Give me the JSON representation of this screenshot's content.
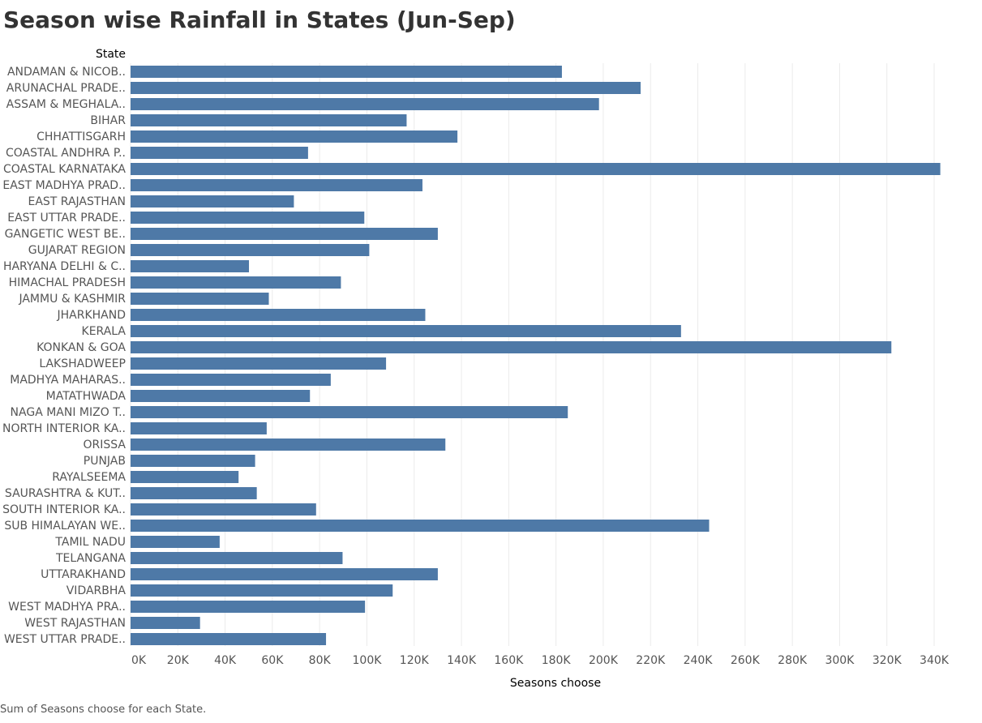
{
  "title": "Season wise Rainfall in States (Jun-Sep)",
  "footer": "Sum of Seasons choose for each State.",
  "colors": {
    "bar": "#4e79a7",
    "grid": "#ebebeb",
    "label": "#555555",
    "header": "#333333"
  },
  "chart_data": {
    "type": "bar",
    "orientation": "horizontal",
    "y_header": "State",
    "xlabel": "Seasons choose",
    "xlim": [
      0,
      350000
    ],
    "x_ticks": [
      0,
      20000,
      40000,
      60000,
      80000,
      100000,
      120000,
      140000,
      160000,
      180000,
      200000,
      220000,
      240000,
      260000,
      280000,
      300000,
      320000,
      340000
    ],
    "x_tick_labels": [
      "0K",
      "20K",
      "40K",
      "60K",
      "80K",
      "100K",
      "120K",
      "140K",
      "160K",
      "180K",
      "200K",
      "220K",
      "240K",
      "260K",
      "280K",
      "300K",
      "320K",
      "340K"
    ],
    "grid": true,
    "categories": [
      "ANDAMAN & NICOB..",
      "ARUNACHAL PRADE..",
      "ASSAM & MEGHALA..",
      "BIHAR",
      "CHHATTISGARH",
      "COASTAL ANDHRA P..",
      "COASTAL KARNATAKA",
      "EAST MADHYA PRAD..",
      "EAST RAJASTHAN",
      "EAST UTTAR PRADE..",
      "GANGETIC WEST BE..",
      "GUJARAT REGION",
      "HARYANA DELHI & C..",
      "HIMACHAL PRADESH",
      "JAMMU & KASHMIR",
      "JHARKHAND",
      "KERALA",
      "KONKAN & GOA",
      "LAKSHADWEEP",
      "MADHYA MAHARAS..",
      "MATATHWADA",
      "NAGA MANI MIZO T..",
      "NORTH INTERIOR KA..",
      "ORISSA",
      "PUNJAB",
      "RAYALSEEMA",
      "SAURASHTRA & KUT..",
      "SOUTH INTERIOR KA..",
      "SUB HIMALAYAN WE..",
      "TAMIL NADU",
      "TELANGANA",
      "UTTARAKHAND",
      "VIDARBHA",
      "WEST MADHYA PRA..",
      "WEST RAJASTHAN",
      "WEST UTTAR PRADE.."
    ],
    "values": [
      182500,
      215800,
      198200,
      116800,
      138300,
      75100,
      342600,
      123500,
      69100,
      98900,
      130000,
      101000,
      50100,
      89000,
      58500,
      124700,
      232900,
      321900,
      108100,
      84700,
      75900,
      185000,
      57600,
      133200,
      52700,
      45700,
      53400,
      78500,
      244800,
      37700,
      89700,
      130000,
      110900,
      99200,
      29400,
      82700
    ]
  }
}
